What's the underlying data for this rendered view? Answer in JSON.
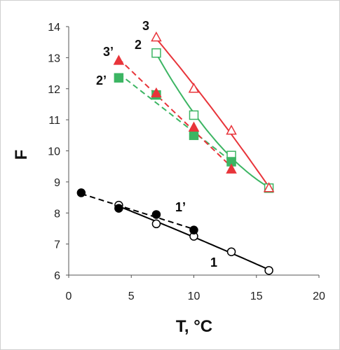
{
  "chart_data": {
    "type": "scatter",
    "xlabel": "T, °C",
    "ylabel": "F",
    "xlim": [
      0,
      20
    ],
    "ylim": [
      6,
      14
    ],
    "xticks": [
      "0",
      "5",
      "10",
      "15",
      "20"
    ],
    "yticks": [
      "6",
      "7",
      "8",
      "9",
      "10",
      "11",
      "12",
      "13",
      "14"
    ],
    "grid": false,
    "series": [
      {
        "name": "1",
        "label": "1",
        "color": "#000000",
        "marker": "circle-open",
        "dash": false,
        "x": [
          4,
          7,
          10,
          13,
          16
        ],
        "y": [
          8.25,
          7.65,
          7.25,
          6.75,
          6.15
        ]
      },
      {
        "name": "1'",
        "label": "1’",
        "color": "#000000",
        "marker": "circle-filled",
        "dash": true,
        "x": [
          1,
          4,
          7,
          10
        ],
        "y": [
          8.65,
          8.15,
          7.95,
          7.45
        ]
      },
      {
        "name": "2",
        "label": "2",
        "color": "#3cb563",
        "marker": "square-open",
        "dash": false,
        "x": [
          7,
          10,
          13,
          16
        ],
        "y": [
          13.15,
          11.15,
          9.85,
          8.8
        ]
      },
      {
        "name": "2'",
        "label": "2’",
        "color": "#3cb563",
        "marker": "square-filled",
        "dash": true,
        "x": [
          4,
          7,
          10,
          13
        ],
        "y": [
          12.35,
          11.8,
          10.5,
          9.65
        ]
      },
      {
        "name": "3",
        "label": "3",
        "color": "#e8343a",
        "marker": "triangle-open",
        "dash": false,
        "x": [
          7,
          10,
          13,
          16
        ],
        "y": [
          13.65,
          12.0,
          10.65,
          8.8
        ]
      },
      {
        "name": "3'",
        "label": "3’",
        "color": "#e8343a",
        "marker": "triangle-filled",
        "dash": true,
        "x": [
          4,
          7,
          10,
          13
        ],
        "y": [
          12.9,
          11.85,
          10.75,
          9.4
        ]
      }
    ]
  }
}
